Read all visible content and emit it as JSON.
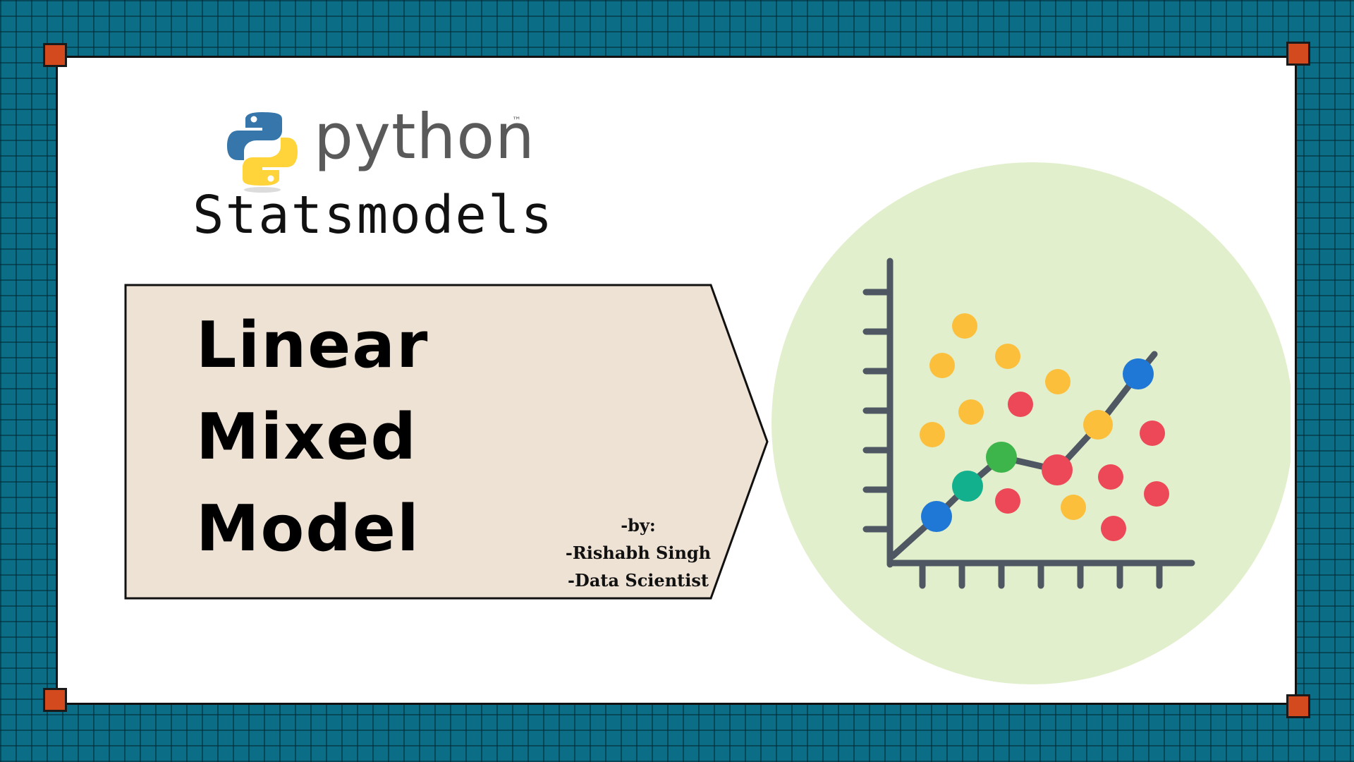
{
  "logo": {
    "icon": "python-logo-icon",
    "wordmark": "python",
    "trademark": "™",
    "colors": {
      "blue": "#3776ab",
      "yellow": "#ffd43b",
      "wordmark": "#5a5a5a"
    }
  },
  "subtitle": "Statsmodels",
  "title": {
    "lines": [
      "Linear",
      "Mixed",
      "Model"
    ]
  },
  "byline": {
    "lines": [
      "-by:",
      "-Rishabh Singh",
      "-Data Scientist"
    ]
  },
  "illustration": {
    "icon": "scatter-chart-icon",
    "colors": {
      "background": "#e2efcc",
      "axis": "#4f5763",
      "line": "#4f5763",
      "yellow": "#fbbf3c",
      "red": "#ec4857",
      "blue": "#1f77d6",
      "teal": "#13b08e",
      "green": "#3db54a"
    }
  },
  "theme": {
    "background": "#0b6e86",
    "card": "#ffffff",
    "banner": "#eee2d5",
    "corner": "#d34a1e"
  }
}
